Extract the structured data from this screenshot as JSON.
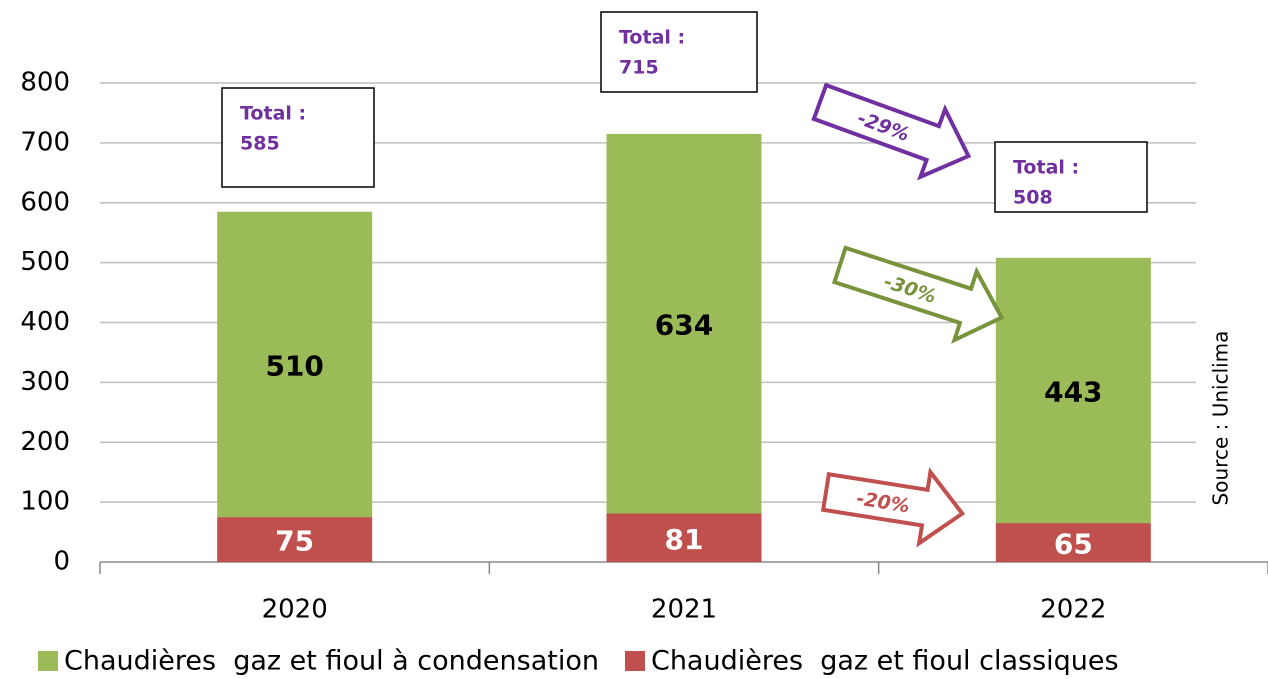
{
  "chart_data": {
    "type": "stacked-bar",
    "categories": [
      "2020",
      "2021",
      "2022"
    ],
    "series": [
      {
        "name": "Chaudières  gaz et fioul à condensation",
        "color": "#9bbb59",
        "values": [
          510,
          634,
          443
        ]
      },
      {
        "name": "Chaudières  gaz et fioul classiques",
        "color": "#c0504d",
        "values": [
          75,
          81,
          65
        ]
      }
    ],
    "ylim": [
      0,
      800
    ],
    "yticks": [
      0,
      100,
      200,
      300,
      400,
      500,
      600,
      700,
      800
    ],
    "grid": true,
    "legend": "bottom",
    "totals": [
      {
        "label": "Total :",
        "value": 585
      },
      {
        "label": "Total :",
        "value": 715
      },
      {
        "label": "Total  :",
        "value": 508
      }
    ],
    "annotations": [
      {
        "text": "-29%",
        "color": "#7030a0"
      },
      {
        "text": "-30%",
        "color": "#77933c"
      },
      {
        "text": "-20%",
        "color": "#c0504d"
      }
    ],
    "source": "Source : Uniclima"
  }
}
